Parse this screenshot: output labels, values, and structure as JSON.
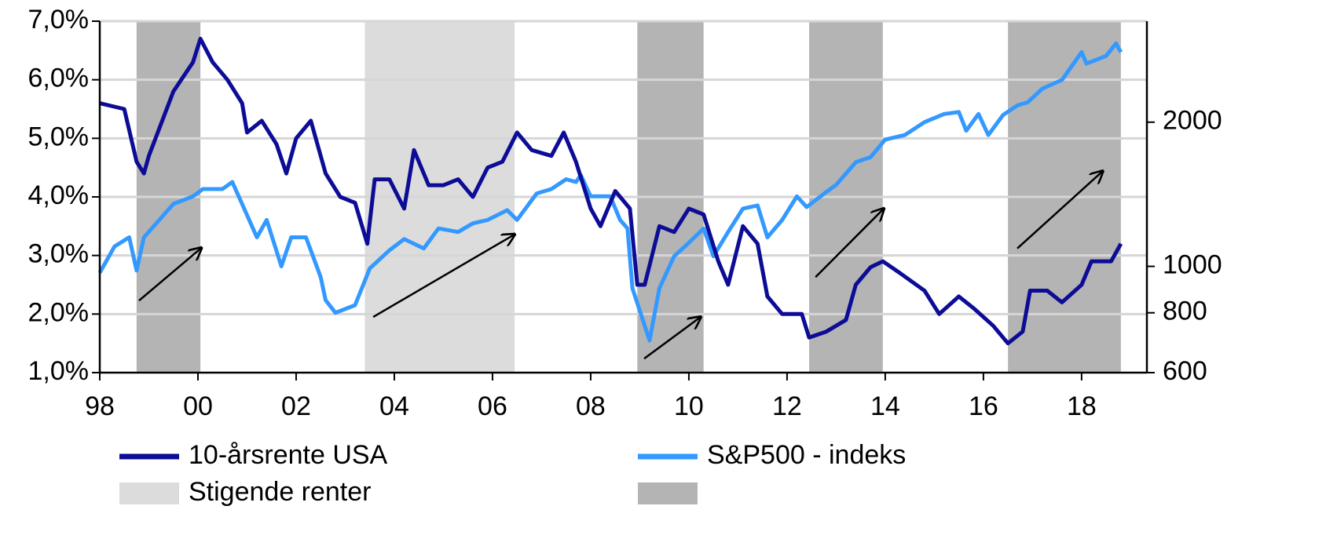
{
  "chart_data": {
    "type": "line",
    "xlim": [
      1998,
      2018.85
    ],
    "xticks": [
      {
        "value": 1998,
        "label": "98"
      },
      {
        "value": 2000,
        "label": "00"
      },
      {
        "value": 2002,
        "label": "02"
      },
      {
        "value": 2004,
        "label": "04"
      },
      {
        "value": 2006,
        "label": "06"
      },
      {
        "value": 2008,
        "label": "08"
      },
      {
        "value": 2010,
        "label": "10"
      },
      {
        "value": 2012,
        "label": "12"
      },
      {
        "value": 2014,
        "label": "14"
      },
      {
        "value": 2016,
        "label": "16"
      },
      {
        "value": 2018,
        "label": "18"
      }
    ],
    "ylim": [
      1,
      7
    ],
    "yticks": [
      {
        "value": 1,
        "label": "1,0%"
      },
      {
        "value": 2,
        "label": "2,0%"
      },
      {
        "value": 3,
        "label": "3,0%"
      },
      {
        "value": 4,
        "label": "4,0%"
      },
      {
        "value": 5,
        "label": "5,0%"
      },
      {
        "value": 6,
        "label": "6,0%"
      },
      {
        "value": 7,
        "label": "7,0%"
      }
    ],
    "y2lim": [
      600,
      3250
    ],
    "y2ticks": [
      600,
      800,
      1000,
      2000
    ],
    "y2log": true,
    "grid": true,
    "regions": [
      {
        "start": 1998.75,
        "end": 2000.05,
        "color": "#b4b4b4"
      },
      {
        "start": 2003.4,
        "end": 2006.45,
        "color": "#dcdcdc"
      },
      {
        "start": 2008.95,
        "end": 2010.3,
        "color": "#b4b4b4"
      },
      {
        "start": 2012.45,
        "end": 2013.95,
        "color": "#b4b4b4"
      },
      {
        "start": 2016.5,
        "end": 2018.8,
        "color": "#b4b4b4"
      }
    ],
    "region_legend": [
      {
        "name": "Stigende renter",
        "color": "#dcdcdc"
      },
      {
        "color": "#b4b4b4"
      }
    ],
    "arrows": [
      {
        "x": [
          1998.8,
          2000.07
        ],
        "y": [
          2.23,
          3.13
        ]
      },
      {
        "x": [
          2003.57,
          2006.45
        ],
        "y": [
          1.95,
          3.36
        ]
      },
      {
        "x": [
          2009.09,
          2010.24
        ],
        "y": [
          1.24,
          1.95
        ]
      },
      {
        "x": [
          2012.58,
          2013.97
        ],
        "y": [
          2.63,
          3.8
        ]
      },
      {
        "x": [
          2016.69,
          2018.43
        ],
        "y": [
          3.12,
          4.44
        ]
      }
    ],
    "series": [
      {
        "name": "10-årsrente USA",
        "color": "#0c0c96",
        "x": [
          1998.0,
          1998.5,
          1998.75,
          1998.9,
          1999.0,
          1999.5,
          1999.9,
          2000.05,
          2000.3,
          2000.6,
          2000.9,
          2001.0,
          2001.3,
          2001.6,
          2001.8,
          2002.0,
          2002.3,
          2002.6,
          2002.9,
          2003.2,
          2003.45,
          2003.6,
          2003.9,
          2004.2,
          2004.4,
          2004.7,
          2005.0,
          2005.3,
          2005.6,
          2005.9,
          2006.2,
          2006.5,
          2006.8,
          2007.2,
          2007.45,
          2007.7,
          2008.0,
          2008.2,
          2008.5,
          2008.8,
          2008.95,
          2009.1,
          2009.4,
          2009.7,
          2010.0,
          2010.3,
          2010.6,
          2010.8,
          2011.1,
          2011.4,
          2011.6,
          2011.9,
          2012.3,
          2012.45,
          2012.8,
          2013.2,
          2013.4,
          2013.7,
          2013.95,
          2014.3,
          2014.8,
          2015.1,
          2015.5,
          2015.8,
          2016.2,
          2016.5,
          2016.8,
          2016.95,
          2017.3,
          2017.6,
          2018.0,
          2018.2,
          2018.6,
          2018.8
        ],
        "values": [
          5.6,
          5.5,
          4.6,
          4.4,
          4.7,
          5.8,
          6.3,
          6.7,
          6.3,
          6.0,
          5.6,
          5.1,
          5.3,
          4.9,
          4.4,
          5.0,
          5.3,
          4.4,
          4.0,
          3.9,
          3.2,
          4.3,
          4.3,
          3.8,
          4.8,
          4.2,
          4.2,
          4.3,
          4.0,
          4.5,
          4.6,
          5.1,
          4.8,
          4.7,
          5.1,
          4.6,
          3.8,
          3.5,
          4.1,
          3.8,
          2.5,
          2.5,
          3.5,
          3.4,
          3.8,
          3.7,
          2.9,
          2.5,
          3.5,
          3.2,
          2.3,
          2.0,
          2.0,
          1.6,
          1.7,
          1.9,
          2.5,
          2.8,
          2.9,
          2.7,
          2.4,
          2.0,
          2.3,
          2.1,
          1.8,
          1.5,
          1.7,
          2.4,
          2.4,
          2.2,
          2.5,
          2.9,
          2.9,
          3.2
        ]
      },
      {
        "name": "S&P500 - indeks",
        "color": "#3399ff",
        "axis": "y2",
        "x": [
          1998.0,
          1998.3,
          1998.6,
          1998.75,
          1998.9,
          1999.5,
          1999.9,
          2000.1,
          2000.5,
          2000.7,
          2000.9,
          2001.2,
          2001.4,
          2001.7,
          2001.9,
          2002.2,
          2002.5,
          2002.6,
          2002.8,
          2003.2,
          2003.5,
          2003.9,
          2004.2,
          2004.6,
          2004.9,
          2005.3,
          2005.6,
          2005.9,
          2006.3,
          2006.5,
          2006.9,
          2007.2,
          2007.5,
          2007.7,
          2007.8,
          2008.0,
          2008.4,
          2008.6,
          2008.75,
          2008.85,
          2009.2,
          2009.4,
          2009.7,
          2010.0,
          2010.3,
          2010.5,
          2010.8,
          2011.1,
          2011.4,
          2011.6,
          2011.9,
          2012.2,
          2012.4,
          2012.8,
          2013.0,
          2013.4,
          2013.7,
          2014.0,
          2014.4,
          2014.8,
          2015.2,
          2015.5,
          2015.65,
          2015.9,
          2016.1,
          2016.4,
          2016.7,
          2016.9,
          2017.2,
          2017.6,
          2018.0,
          2018.1,
          2018.5,
          2018.7,
          2018.8
        ],
        "values": [
          970,
          1100,
          1150,
          980,
          1150,
          1350,
          1400,
          1450,
          1450,
          1500,
          1350,
          1150,
          1250,
          1000,
          1150,
          1150,
          950,
          850,
          800,
          830,
          990,
          1080,
          1140,
          1090,
          1200,
          1180,
          1230,
          1250,
          1310,
          1250,
          1420,
          1450,
          1520,
          1500,
          1550,
          1400,
          1400,
          1250,
          1200,
          900,
          700,
          900,
          1050,
          1120,
          1200,
          1050,
          1180,
          1320,
          1340,
          1150,
          1250,
          1400,
          1330,
          1430,
          1480,
          1650,
          1690,
          1840,
          1880,
          2000,
          2080,
          2100,
          1920,
          2080,
          1880,
          2070,
          2170,
          2200,
          2350,
          2450,
          2800,
          2650,
          2750,
          2920,
          2800
        ]
      }
    ]
  }
}
